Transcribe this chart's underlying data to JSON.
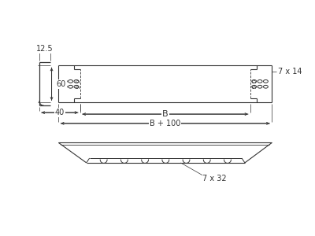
{
  "bg_color": "#ffffff",
  "line_color": "#333333",
  "annotations": {
    "dim_125": "12.5",
    "dim_60": "60",
    "dim_40": "40",
    "dim_B": "B",
    "dim_B100": "B + 100",
    "dim_7x14": "7 x 14",
    "dim_7x32": "7 x 32"
  },
  "figsize": [
    4.0,
    3.0
  ],
  "dpi": 100
}
